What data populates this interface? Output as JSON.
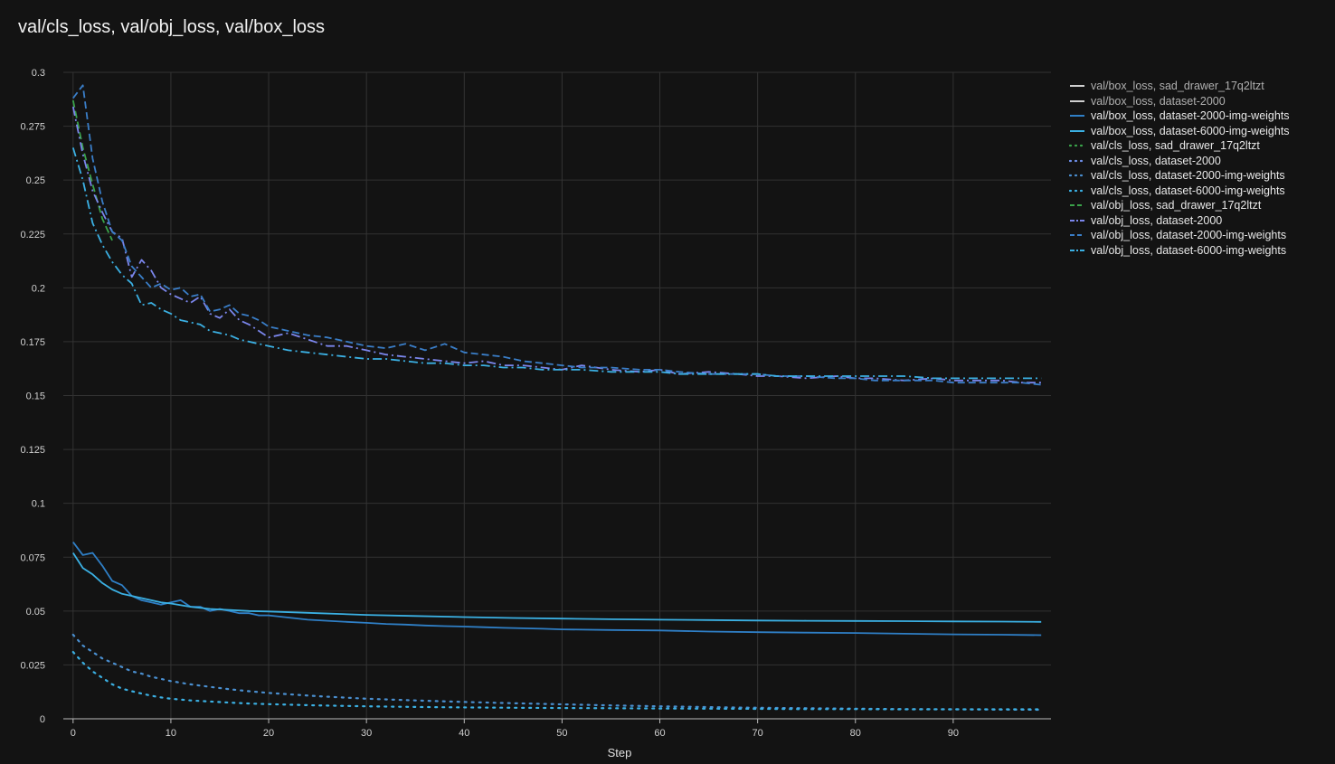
{
  "chart_data": {
    "type": "line",
    "title": "val/cls_loss, val/obj_loss, val/box_loss",
    "xlabel": "Step",
    "ylabel": "",
    "xlim": [
      -1,
      100
    ],
    "ylim": [
      0,
      0.3
    ],
    "xticks": [
      0,
      10,
      20,
      30,
      40,
      50,
      60,
      70,
      80,
      90
    ],
    "yticks": [
      0,
      0.025,
      0.05,
      0.075,
      0.1,
      0.125,
      0.15,
      0.175,
      0.2,
      0.225,
      0.25,
      0.275,
      0.3
    ],
    "ytick_labels": [
      "0",
      "0.025",
      "0.05",
      "0.075",
      "0.1",
      "0.125",
      "0.15",
      "0.175",
      "0.2",
      "0.225",
      "0.25",
      "0.275",
      "0.3"
    ],
    "grid": true,
    "legend_position": "right",
    "series": [
      {
        "name": "val/box_loss, sad_drawer_17q2ltzt",
        "color": "#cfcfcf",
        "dash": "solid",
        "muted": true,
        "x": [],
        "y": []
      },
      {
        "name": "val/box_loss, dataset-2000",
        "color": "#cfcfcf",
        "dash": "solid",
        "muted": true,
        "x": [],
        "y": []
      },
      {
        "name": "val/box_loss, dataset-2000-img-weights",
        "color": "#2f7fc6",
        "dash": "solid",
        "x": [
          0,
          1,
          2,
          3,
          4,
          5,
          6,
          7,
          8,
          9,
          10,
          11,
          12,
          13,
          14,
          15,
          16,
          17,
          18,
          19,
          20,
          22,
          24,
          26,
          28,
          30,
          32,
          34,
          36,
          38,
          40,
          42,
          44,
          46,
          48,
          50,
          55,
          60,
          65,
          70,
          75,
          80,
          85,
          90,
          95,
          99
        ],
        "y": [
          0.082,
          0.076,
          0.077,
          0.071,
          0.064,
          0.062,
          0.057,
          0.055,
          0.054,
          0.053,
          0.054,
          0.055,
          0.052,
          0.052,
          0.05,
          0.051,
          0.05,
          0.049,
          0.049,
          0.048,
          0.048,
          0.047,
          0.046,
          0.0455,
          0.045,
          0.0445,
          0.044,
          0.0437,
          0.0433,
          0.043,
          0.0428,
          0.0425,
          0.0422,
          0.042,
          0.0418,
          0.0415,
          0.0412,
          0.041,
          0.0405,
          0.0402,
          0.04,
          0.0398,
          0.0395,
          0.0392,
          0.039,
          0.0388
        ]
      },
      {
        "name": "val/box_loss, dataset-6000-img-weights",
        "color": "#3bb0e3",
        "dash": "solid",
        "x": [
          0,
          1,
          2,
          3,
          4,
          5,
          6,
          7,
          8,
          9,
          10,
          12,
          14,
          16,
          18,
          20,
          25,
          30,
          35,
          40,
          45,
          50,
          55,
          60,
          65,
          70,
          75,
          80,
          85,
          90,
          95,
          99
        ],
        "y": [
          0.077,
          0.07,
          0.067,
          0.063,
          0.06,
          0.058,
          0.057,
          0.056,
          0.055,
          0.054,
          0.0535,
          0.052,
          0.051,
          0.0505,
          0.05,
          0.0498,
          0.049,
          0.0482,
          0.0477,
          0.0472,
          0.0468,
          0.0465,
          0.0462,
          0.046,
          0.0458,
          0.0456,
          0.0455,
          0.0454,
          0.0453,
          0.0452,
          0.0451,
          0.045
        ]
      },
      {
        "name": "val/cls_loss, sad_drawer_17q2ltzt",
        "color": "#3aa34a",
        "dash": "dot",
        "x": [],
        "y": []
      },
      {
        "name": "val/cls_loss, dataset-2000",
        "color": "#6e8ee8",
        "dash": "dot",
        "x": [],
        "y": []
      },
      {
        "name": "val/cls_loss, dataset-2000-img-weights",
        "color": "#4a8fd0",
        "dash": "dot",
        "x": [
          0,
          1,
          2,
          3,
          4,
          5,
          6,
          7,
          8,
          9,
          10,
          12,
          14,
          16,
          18,
          20,
          25,
          30,
          35,
          40,
          45,
          50,
          55,
          60,
          65,
          70,
          75,
          80,
          85,
          90,
          95,
          99
        ],
        "y": [
          0.039,
          0.034,
          0.031,
          0.028,
          0.026,
          0.024,
          0.022,
          0.021,
          0.0195,
          0.0185,
          0.0175,
          0.016,
          0.0148,
          0.0137,
          0.0128,
          0.012,
          0.0105,
          0.0093,
          0.0085,
          0.0078,
          0.0072,
          0.0067,
          0.0062,
          0.0058,
          0.0054,
          0.0051,
          0.0049,
          0.0047,
          0.0045,
          0.0044,
          0.0043,
          0.0042
        ]
      },
      {
        "name": "val/cls_loss, dataset-6000-img-weights",
        "color": "#3bb0e3",
        "dash": "dot",
        "x": [
          0,
          1,
          2,
          3,
          4,
          5,
          6,
          7,
          8,
          9,
          10,
          12,
          14,
          16,
          18,
          20,
          25,
          30,
          35,
          40,
          45,
          50,
          55,
          60,
          65,
          70,
          75,
          80,
          85,
          90,
          95,
          99
        ],
        "y": [
          0.031,
          0.026,
          0.022,
          0.019,
          0.016,
          0.014,
          0.0128,
          0.0117,
          0.0107,
          0.0099,
          0.0093,
          0.0085,
          0.008,
          0.0075,
          0.0071,
          0.0068,
          0.0062,
          0.0058,
          0.0055,
          0.0053,
          0.0051,
          0.005,
          0.0049,
          0.0048,
          0.0047,
          0.0046,
          0.0045,
          0.0045,
          0.0044,
          0.0044,
          0.0044,
          0.0044
        ]
      },
      {
        "name": "val/obj_loss, sad_drawer_17q2ltzt",
        "color": "#3aa34a",
        "dash": "dash",
        "x": [
          0,
          1,
          2,
          3,
          4
        ],
        "y": [
          0.287,
          0.265,
          0.248,
          0.232,
          0.222
        ]
      },
      {
        "name": "val/obj_loss, dataset-2000",
        "color": "#7b86ec",
        "dash": "dashdot",
        "x": [
          0,
          1,
          2,
          3,
          4,
          5,
          6,
          7,
          8,
          9,
          10,
          11,
          12,
          13,
          14,
          15,
          16,
          17,
          18,
          19,
          20,
          22,
          24,
          26,
          28,
          30,
          32,
          34,
          36,
          38,
          40,
          42,
          44,
          46,
          48,
          50,
          52,
          55,
          58,
          60,
          62,
          65,
          68,
          70,
          72,
          75,
          78,
          80,
          82,
          85,
          88,
          90,
          92,
          95,
          97,
          99
        ],
        "y": [
          0.284,
          0.262,
          0.245,
          0.235,
          0.226,
          0.223,
          0.205,
          0.213,
          0.208,
          0.2,
          0.197,
          0.195,
          0.193,
          0.196,
          0.188,
          0.186,
          0.19,
          0.185,
          0.183,
          0.18,
          0.177,
          0.179,
          0.176,
          0.173,
          0.173,
          0.171,
          0.169,
          0.168,
          0.167,
          0.166,
          0.165,
          0.166,
          0.164,
          0.164,
          0.163,
          0.162,
          0.164,
          0.162,
          0.161,
          0.162,
          0.16,
          0.161,
          0.16,
          0.159,
          0.159,
          0.158,
          0.159,
          0.158,
          0.158,
          0.157,
          0.158,
          0.157,
          0.157,
          0.157,
          0.156,
          0.156
        ]
      },
      {
        "name": "val/obj_loss, dataset-2000-img-weights",
        "color": "#3a7ec8",
        "dash": "dash",
        "x": [
          0,
          1,
          2,
          3,
          4,
          5,
          6,
          7,
          8,
          9,
          10,
          11,
          12,
          13,
          14,
          15,
          16,
          17,
          18,
          19,
          20,
          22,
          24,
          26,
          28,
          30,
          32,
          34,
          36,
          38,
          40,
          42,
          44,
          46,
          48,
          50,
          52,
          55,
          58,
          60,
          62,
          65,
          68,
          70,
          72,
          75,
          78,
          80,
          82,
          85,
          88,
          90,
          92,
          95,
          97,
          99
        ],
        "y": [
          0.288,
          0.294,
          0.26,
          0.24,
          0.226,
          0.222,
          0.21,
          0.205,
          0.2,
          0.202,
          0.199,
          0.2,
          0.196,
          0.197,
          0.189,
          0.19,
          0.192,
          0.188,
          0.187,
          0.185,
          0.182,
          0.18,
          0.178,
          0.177,
          0.175,
          0.173,
          0.172,
          0.174,
          0.171,
          0.174,
          0.17,
          0.169,
          0.168,
          0.166,
          0.165,
          0.164,
          0.163,
          0.163,
          0.162,
          0.162,
          0.161,
          0.16,
          0.16,
          0.16,
          0.159,
          0.159,
          0.158,
          0.158,
          0.157,
          0.157,
          0.157,
          0.156,
          0.156,
          0.156,
          0.156,
          0.155
        ]
      },
      {
        "name": "val/obj_loss, dataset-6000-img-weights",
        "color": "#3bb0e3",
        "dash": "dashdot",
        "x": [
          0,
          1,
          2,
          3,
          4,
          5,
          6,
          7,
          8,
          9,
          10,
          11,
          12,
          13,
          14,
          15,
          16,
          17,
          18,
          19,
          20,
          22,
          24,
          26,
          28,
          30,
          32,
          34,
          36,
          38,
          40,
          42,
          44,
          46,
          48,
          50,
          52,
          55,
          58,
          60,
          62,
          65,
          68,
          70,
          72,
          75,
          78,
          80,
          82,
          85,
          88,
          90,
          92,
          95,
          97,
          99
        ],
        "y": [
          0.265,
          0.25,
          0.23,
          0.22,
          0.212,
          0.206,
          0.202,
          0.192,
          0.193,
          0.19,
          0.188,
          0.185,
          0.184,
          0.183,
          0.18,
          0.179,
          0.178,
          0.176,
          0.175,
          0.174,
          0.173,
          0.171,
          0.17,
          0.169,
          0.168,
          0.167,
          0.167,
          0.166,
          0.165,
          0.165,
          0.164,
          0.164,
          0.163,
          0.163,
          0.162,
          0.162,
          0.162,
          0.161,
          0.161,
          0.161,
          0.16,
          0.16,
          0.16,
          0.16,
          0.159,
          0.159,
          0.159,
          0.159,
          0.159,
          0.159,
          0.158,
          0.158,
          0.158,
          0.158,
          0.158,
          0.158
        ]
      }
    ]
  }
}
